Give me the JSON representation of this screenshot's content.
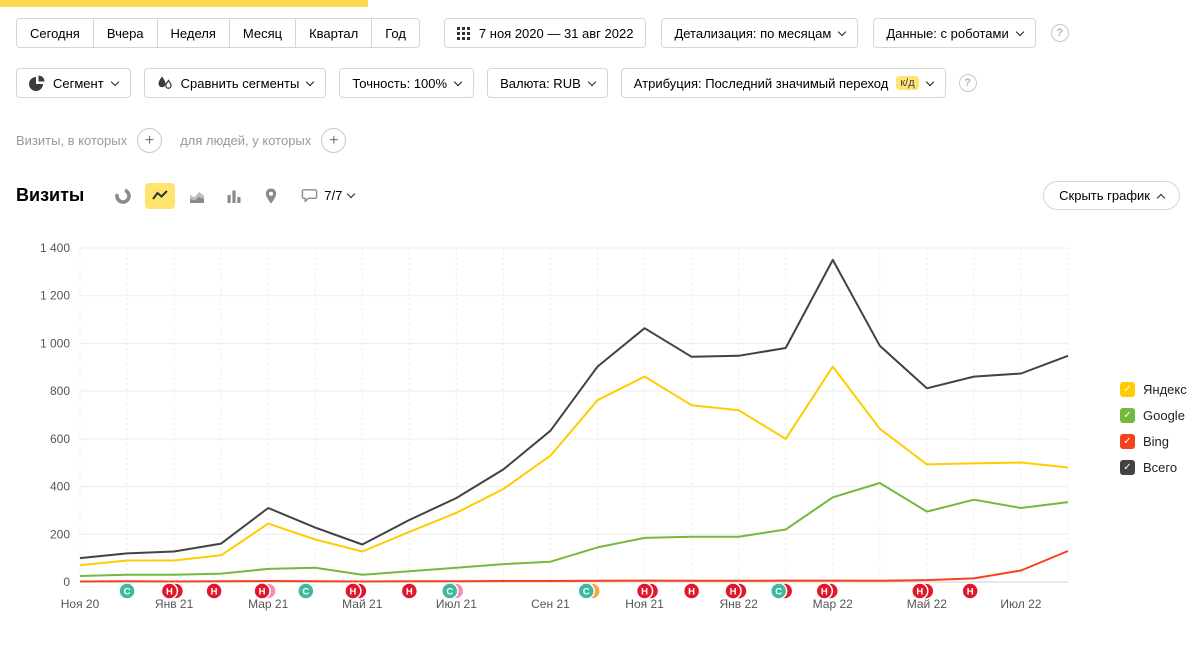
{
  "toolbar": {
    "periods": [
      "Сегодня",
      "Вчера",
      "Неделя",
      "Месяц",
      "Квартал",
      "Год"
    ],
    "date_range": "7 ноя 2020 — 31 авг 2022",
    "granularity": "Детализация: по месяцам",
    "data_mode": "Данные: с роботами",
    "help_symbol": "?"
  },
  "filters": {
    "segment": "Сегмент",
    "compare_segments": "Сравнить сегменты",
    "accuracy": "Точность: 100%",
    "currency": "Валюта: RUB",
    "attribution": "Атрибуция: Последний значимый переход",
    "attribution_badge": "к/д",
    "help_symbol": "?"
  },
  "segment_builder": {
    "visits_label": "Визиты, в которых",
    "people_label": "для людей, у которых",
    "add_symbol": "+"
  },
  "chart_header": {
    "title": "Визиты",
    "comments_count": "7/7",
    "hide_chart_label": "Скрыть график"
  },
  "chart_data": {
    "type": "line",
    "x": [
      "Ноя 20",
      "Дек 20",
      "Янв 21",
      "Фев 21",
      "Мар 21",
      "Апр 21",
      "Май 21",
      "Июн 21",
      "Июл 21",
      "Авг 21",
      "Сен 21",
      "Окт 21",
      "Ноя 21",
      "Дек 21",
      "Янв 22",
      "Фев 22",
      "Мар 22",
      "Апр 22",
      "Май 22",
      "Июн 22",
      "Июл 22",
      "Авг 22"
    ],
    "x_labels_every": 2,
    "ylim": [
      0,
      1400
    ],
    "yticks": [
      {
        "value": 0,
        "label": "0"
      },
      {
        "value": 200,
        "label": "200"
      },
      {
        "value": 400,
        "label": "400"
      },
      {
        "value": 600,
        "label": "600"
      },
      {
        "value": 800,
        "label": "800"
      },
      {
        "value": 1000,
        "label": "1 000"
      },
      {
        "value": 1200,
        "label": "1 200"
      },
      {
        "value": 1400,
        "label": "1 400"
      }
    ],
    "series": [
      {
        "name": "Яндекс",
        "color": "#ffcc00",
        "values": [
          70,
          90,
          90,
          112,
          245,
          178,
          128,
          210,
          290,
          390,
          530,
          762,
          861,
          741,
          720,
          600,
          903,
          642,
          493,
          497,
          501,
          480
        ]
      },
      {
        "name": "Google",
        "color": "#74b93e",
        "values": [
          25,
          30,
          30,
          35,
          55,
          60,
          30,
          45,
          60,
          75,
          85,
          145,
          185,
          190,
          190,
          220,
          355,
          415,
          295,
          345,
          310,
          335
        ]
      },
      {
        "name": "Bing",
        "color": "#f4421f",
        "values": [
          2,
          3,
          2,
          3,
          4,
          3,
          2,
          3,
          3,
          4,
          4,
          5,
          6,
          5,
          5,
          6,
          6,
          5,
          8,
          15,
          48,
          130
        ]
      },
      {
        "name": "Всего",
        "color": "#424242",
        "values": [
          100,
          120,
          128,
          161,
          310,
          228,
          157,
          260,
          352,
          472,
          634,
          903,
          1064,
          944,
          948,
          981,
          1350,
          990,
          812,
          861,
          874,
          948
        ]
      }
    ],
    "legend_position": "right"
  },
  "timeline_markers": [
    {
      "pos": 1.0,
      "letter": "С",
      "color": "#3cb9a0",
      "behind": []
    },
    {
      "pos": 1.9,
      "letter": "Н",
      "color": "#e0182d",
      "behind": [
        "#e0182d"
      ]
    },
    {
      "pos": 2.85,
      "letter": "Н",
      "color": "#e0182d",
      "behind": []
    },
    {
      "pos": 3.87,
      "letter": "Н",
      "color": "#e0182d",
      "behind": [
        "#f48fb1"
      ]
    },
    {
      "pos": 4.8,
      "letter": "С",
      "color": "#3cb9a0",
      "behind": []
    },
    {
      "pos": 5.8,
      "letter": "Н",
      "color": "#e0182d",
      "behind": [
        "#e0182d"
      ]
    },
    {
      "pos": 7.0,
      "letter": "Н",
      "color": "#e0182d",
      "behind": []
    },
    {
      "pos": 7.86,
      "letter": "С",
      "color": "#3cb9a0",
      "behind": [
        "#f48fb1"
      ]
    },
    {
      "pos": 10.76,
      "letter": "С",
      "color": "#3cb9a0",
      "behind": [
        "#f5a742"
      ]
    },
    {
      "pos": 12.0,
      "letter": "Н",
      "color": "#e0182d",
      "behind": [
        "#e0182d"
      ]
    },
    {
      "pos": 13.0,
      "letter": "Н",
      "color": "#e0182d",
      "behind": []
    },
    {
      "pos": 13.88,
      "letter": "Н",
      "color": "#e0182d",
      "behind": [
        "#e0182d"
      ]
    },
    {
      "pos": 14.85,
      "letter": "С",
      "color": "#3cb9a0",
      "behind": [
        "#e0182d"
      ]
    },
    {
      "pos": 15.82,
      "letter": "Н",
      "color": "#e0182d",
      "behind": [
        "#e0182d"
      ]
    },
    {
      "pos": 17.85,
      "letter": "Н",
      "color": "#e0182d",
      "behind": [
        "#e0182d"
      ]
    },
    {
      "pos": 18.92,
      "letter": "Н",
      "color": "#e0182d",
      "behind": []
    }
  ],
  "colors": {
    "accent_yellow": "#ffcc00",
    "selected_icon_bg": "#ffe570",
    "marker_red": "#e0182d",
    "marker_teal": "#3cb9a0"
  }
}
